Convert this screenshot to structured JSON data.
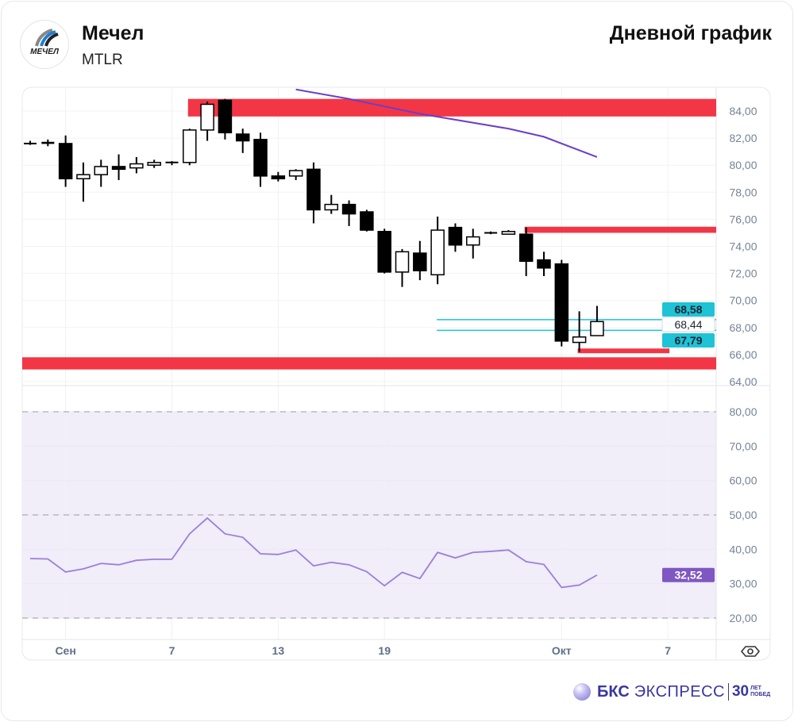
{
  "header": {
    "company": "Мечел",
    "ticker": "MTLR",
    "logo_text": "МЕЧЕЛ",
    "chart_title": "Дневной график"
  },
  "footer": {
    "brand_bold": "БКС",
    "brand_light": "ЭКСПРЕСС",
    "anniversary_number": "30",
    "anniversary_line1": "ЛЕТ",
    "anniversary_line2": "ПОБЕД"
  },
  "colors": {
    "zone": "#f23645",
    "ma": "#6a3fc9",
    "rsi": "#9b7fd8",
    "rsi_band": "#f1edf9",
    "level_line": "#1fc3d6",
    "rsi_badge": "#7e57c2"
  },
  "chart_data": [
    {
      "type": "candlestick",
      "ylim": [
        64,
        85.6
      ],
      "y_ticks": [
        "84,00",
        "82,00",
        "80,00",
        "78,00",
        "76,00",
        "74,00",
        "72,00",
        "70,00",
        "68,00",
        "66,00",
        "64,00"
      ],
      "y_tick_values": [
        84,
        82,
        80,
        78,
        76,
        74,
        72,
        70,
        68,
        66,
        64
      ],
      "x_tick_labels": [
        {
          "index": 2,
          "label": "Сен"
        },
        {
          "index": 8,
          "label": "7"
        },
        {
          "index": 14,
          "label": "13"
        },
        {
          "index": 20,
          "label": "19"
        },
        {
          "index": 30,
          "label": "Окт"
        },
        {
          "index": 36,
          "label": "7"
        }
      ],
      "candles": [
        {
          "o": 81.6,
          "h": 81.8,
          "l": 81.5,
          "c": 81.6
        },
        {
          "o": 81.7,
          "h": 81.9,
          "l": 81.4,
          "c": 81.6
        },
        {
          "o": 81.6,
          "h": 82.2,
          "l": 78.4,
          "c": 79.0
        },
        {
          "o": 79.0,
          "h": 80.2,
          "l": 77.3,
          "c": 79.3
        },
        {
          "o": 79.3,
          "h": 80.4,
          "l": 78.4,
          "c": 79.9
        },
        {
          "o": 79.9,
          "h": 80.8,
          "l": 78.9,
          "c": 79.7
        },
        {
          "o": 79.8,
          "h": 80.6,
          "l": 79.4,
          "c": 80.1
        },
        {
          "o": 80.0,
          "h": 80.4,
          "l": 79.8,
          "c": 80.2
        },
        {
          "o": 80.2,
          "h": 80.3,
          "l": 80.0,
          "c": 80.2
        },
        {
          "o": 80.2,
          "h": 82.7,
          "l": 80.0,
          "c": 82.6
        },
        {
          "o": 82.6,
          "h": 84.7,
          "l": 81.8,
          "c": 84.5
        },
        {
          "o": 84.8,
          "h": 84.9,
          "l": 81.9,
          "c": 82.4
        },
        {
          "o": 82.3,
          "h": 82.7,
          "l": 80.9,
          "c": 81.8
        },
        {
          "o": 81.9,
          "h": 82.4,
          "l": 78.4,
          "c": 79.2
        },
        {
          "o": 79.2,
          "h": 79.5,
          "l": 78.8,
          "c": 79.0
        },
        {
          "o": 79.2,
          "h": 79.7,
          "l": 78.9,
          "c": 79.6
        },
        {
          "o": 79.7,
          "h": 80.2,
          "l": 75.7,
          "c": 76.7
        },
        {
          "o": 76.7,
          "h": 77.8,
          "l": 76.4,
          "c": 77.1
        },
        {
          "o": 77.1,
          "h": 77.4,
          "l": 75.5,
          "c": 76.4
        },
        {
          "o": 76.55,
          "h": 76.7,
          "l": 75.1,
          "c": 75.2
        },
        {
          "o": 75.1,
          "h": 75.3,
          "l": 72.0,
          "c": 72.1
        },
        {
          "o": 72.1,
          "h": 73.8,
          "l": 71.0,
          "c": 73.6
        },
        {
          "o": 73.5,
          "h": 74.4,
          "l": 71.5,
          "c": 72.2
        },
        {
          "o": 71.9,
          "h": 76.2,
          "l": 71.2,
          "c": 75.2
        },
        {
          "o": 75.4,
          "h": 75.7,
          "l": 73.6,
          "c": 74.1
        },
        {
          "o": 74.1,
          "h": 75.3,
          "l": 73.1,
          "c": 74.7
        },
        {
          "o": 75.0,
          "h": 75.1,
          "l": 74.9,
          "c": 75.0
        },
        {
          "o": 74.9,
          "h": 75.2,
          "l": 74.9,
          "c": 75.1
        },
        {
          "o": 74.9,
          "h": 75.4,
          "l": 71.8,
          "c": 72.9
        },
        {
          "o": 73.0,
          "h": 73.6,
          "l": 71.8,
          "c": 72.4
        },
        {
          "o": 72.7,
          "h": 73.0,
          "l": 66.6,
          "c": 67.0
        },
        {
          "o": 66.9,
          "h": 69.2,
          "l": 66.2,
          "c": 67.3
        },
        {
          "o": 67.4,
          "h": 69.6,
          "l": 67.4,
          "c": 68.44
        }
      ],
      "moving_average": [
        {
          "index": 15,
          "value": 85.6
        },
        {
          "index": 18,
          "value": 84.9
        },
        {
          "index": 22,
          "value": 83.8
        },
        {
          "index": 27,
          "value": 82.7
        },
        {
          "index": 29,
          "value": 82.1
        },
        {
          "index": 32,
          "value": 80.6
        }
      ],
      "zones": [
        {
          "from_index": 9,
          "to": "right",
          "low": 83.6,
          "high": 84.9
        },
        {
          "from_index": 28,
          "to": "right",
          "low": 75.0,
          "high": 75.45
        },
        {
          "from_index": 31,
          "to_index": 36,
          "low": 66.1,
          "high": 66.45
        },
        {
          "from_index": 0,
          "to": "right",
          "low": 64.9,
          "high": 65.8
        }
      ],
      "level_lines": [
        {
          "value": 68.58,
          "label": "68,58",
          "from_index": 23
        },
        {
          "value": 67.79,
          "label": "67,79",
          "from_index": 23
        }
      ],
      "last_price_label": "68,44"
    },
    {
      "type": "line",
      "name": "RSI",
      "ylim": [
        20,
        80
      ],
      "levels": [
        80,
        50,
        20
      ],
      "y_ticks": [
        "80,00",
        "70,00",
        "60,00",
        "50,00",
        "40,00",
        "30,00",
        "20,00"
      ],
      "y_tick_values": [
        80,
        70,
        60,
        50,
        40,
        30,
        20
      ],
      "values": [
        37.3,
        37.2,
        33.4,
        34.3,
        35.9,
        35.5,
        36.8,
        37.1,
        37.1,
        44.5,
        49.1,
        44.5,
        43.5,
        38.7,
        38.5,
        39.8,
        35.2,
        36.2,
        35.5,
        33.5,
        29.4,
        33.3,
        31.5,
        39.1,
        37.5,
        39.1,
        39.4,
        39.8,
        36.4,
        35.6,
        28.9,
        29.6,
        32.52
      ],
      "last_value_label": "32,52"
    }
  ]
}
